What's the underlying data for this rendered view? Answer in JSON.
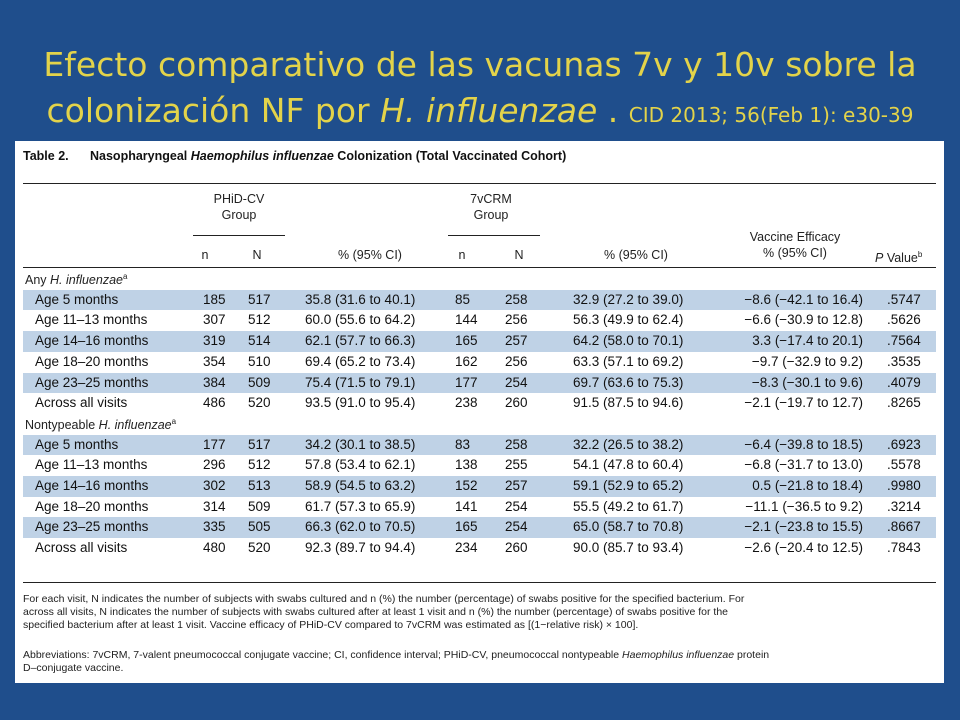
{
  "title": {
    "line1": "Efecto comparativo de las vacunas 7v y 10v sobre la",
    "line2_prefix": "colonización NF por ",
    "line2_italic": "H. influenzae",
    "line2_suffix": " . ",
    "citation": "CID 2013; 56(Feb 1): e30-39"
  },
  "table": {
    "label_num": "Table 2.",
    "label_pre": "Nasopharyngeal ",
    "label_italic": "Haemophilus influenzae",
    "label_post": " Colonization (Total Vaccinated Cohort)",
    "headers": {
      "group1_line1": "PHiD-CV",
      "group1_line2": "Group",
      "group2_line1": "7vCRM",
      "group2_line2": "Group",
      "n": "n",
      "N": "N",
      "pct": "% (95% CI)",
      "ve_line1": "Vaccine Efficacy",
      "ve_line2": "% (95% CI)",
      "p_italic": "P",
      "p_text": " Value",
      "p_sup": "b"
    },
    "groups": [
      {
        "name_pre": "Any ",
        "name_italic": "H. influenzae",
        "name_sup": "a",
        "rows": [
          {
            "label": "Age 5 months",
            "n1": "185",
            "N1": "517",
            "p1": "35.8 (31.6 to 40.1)",
            "n2": "85",
            "N2": "258",
            "p2": "32.9 (27.2 to 39.0)",
            "ve": "−8.6 (−42.1 to 16.4)",
            "pv": ".5747"
          },
          {
            "label": "Age 11–13 months",
            "n1": "307",
            "N1": "512",
            "p1": "60.0 (55.6 to 64.2)",
            "n2": "144",
            "N2": "256",
            "p2": "56.3 (49.9 to 62.4)",
            "ve": "−6.6 (−30.9 to 12.8)",
            "pv": ".5626"
          },
          {
            "label": "Age 14–16 months",
            "n1": "319",
            "N1": "514",
            "p1": "62.1 (57.7 to 66.3)",
            "n2": "165",
            "N2": "257",
            "p2": "64.2 (58.0 to 70.1)",
            "ve": "3.3 (−17.4 to 20.1)",
            "pv": ".7564"
          },
          {
            "label": "Age 18–20 months",
            "n1": "354",
            "N1": "510",
            "p1": "69.4 (65.2 to 73.4)",
            "n2": "162",
            "N2": "256",
            "p2": "63.3 (57.1 to 69.2)",
            "ve": "−9.7 (−32.9 to 9.2)",
            "pv": ".3535"
          },
          {
            "label": "Age 23–25 months",
            "n1": "384",
            "N1": "509",
            "p1": "75.4 (71.5 to 79.1)",
            "n2": "177",
            "N2": "254",
            "p2": "69.7 (63.6 to 75.3)",
            "ve": "−8.3 (−30.1 to 9.6)",
            "pv": ".4079"
          },
          {
            "label": "Across all visits",
            "n1": "486",
            "N1": "520",
            "p1": "93.5 (91.0 to 95.4)",
            "n2": "238",
            "N2": "260",
            "p2": "91.5 (87.5 to 94.6)",
            "ve": "−2.1 (−19.7 to 12.7)",
            "pv": ".8265"
          }
        ]
      },
      {
        "name_pre": "Nontypeable ",
        "name_italic": "H. influenzae",
        "name_sup": "a",
        "rows": [
          {
            "label": "Age 5 months",
            "n1": "177",
            "N1": "517",
            "p1": "34.2 (30.1 to 38.5)",
            "n2": "83",
            "N2": "258",
            "p2": "32.2 (26.5 to 38.2)",
            "ve": "−6.4 (−39.8 to 18.5)",
            "pv": ".6923"
          },
          {
            "label": "Age 11–13 months",
            "n1": "296",
            "N1": "512",
            "p1": "57.8 (53.4 to 62.1)",
            "n2": "138",
            "N2": "255",
            "p2": "54.1 (47.8 to 60.4)",
            "ve": "−6.8 (−31.7 to 13.0)",
            "pv": ".5578"
          },
          {
            "label": "Age 14–16 months",
            "n1": "302",
            "N1": "513",
            "p1": "58.9 (54.5 to 63.2)",
            "n2": "152",
            "N2": "257",
            "p2": "59.1 (52.9 to 65.2)",
            "ve": "0.5 (−21.8 to 18.4)",
            "pv": ".9980"
          },
          {
            "label": "Age 18–20 months",
            "n1": "314",
            "N1": "509",
            "p1": "61.7 (57.3 to 65.9)",
            "n2": "141",
            "N2": "254",
            "p2": "55.5 (49.2 to 61.7)",
            "ve": "−11.1 (−36.5 to 9.2)",
            "pv": ".3214"
          },
          {
            "label": "Age 23–25 months",
            "n1": "335",
            "N1": "505",
            "p1": "66.3 (62.0 to 70.5)",
            "n2": "165",
            "N2": "254",
            "p2": "65.0 (58.7 to 70.8)",
            "ve": "−2.1 (−23.8 to 15.5)",
            "pv": ".8667"
          },
          {
            "label": "Across all visits",
            "n1": "480",
            "N1": "520",
            "p1": "92.3 (89.7 to 94.4)",
            "n2": "234",
            "N2": "260",
            "p2": "90.0 (85.7 to 93.4)",
            "ve": "−2.6 (−20.4 to 12.5)",
            "pv": ".7843"
          }
        ]
      }
    ],
    "footnote_a_lines": [
      "For each visit, N indicates the number of subjects with swabs cultured and n (%) the number (percentage) of swabs positive for the specified bacterium. For",
      "across all visits, N indicates the number of subjects with swabs cultured after at least 1 visit and n (%) the number (percentage) of swabs positive for the",
      "specified bacterium after at least 1 visit. Vaccine efficacy of PHiD-CV compared to 7vCRM was estimated as [(1−relative risk) × 100]."
    ],
    "abbrev_line1_pre": "Abbreviations: 7vCRM, 7-valent pneumococcal conjugate vaccine; CI, confidence interval; PHiD-CV, pneumococcal nontypeable ",
    "abbrev_line1_italic": "Haemophilus influenzae",
    "abbrev_line1_post": " protein",
    "abbrev_line2": "D–conjugate vaccine."
  },
  "colors": {
    "background": "#1f4e8c",
    "title": "#e3d34a",
    "band": "#bfd2e6"
  }
}
